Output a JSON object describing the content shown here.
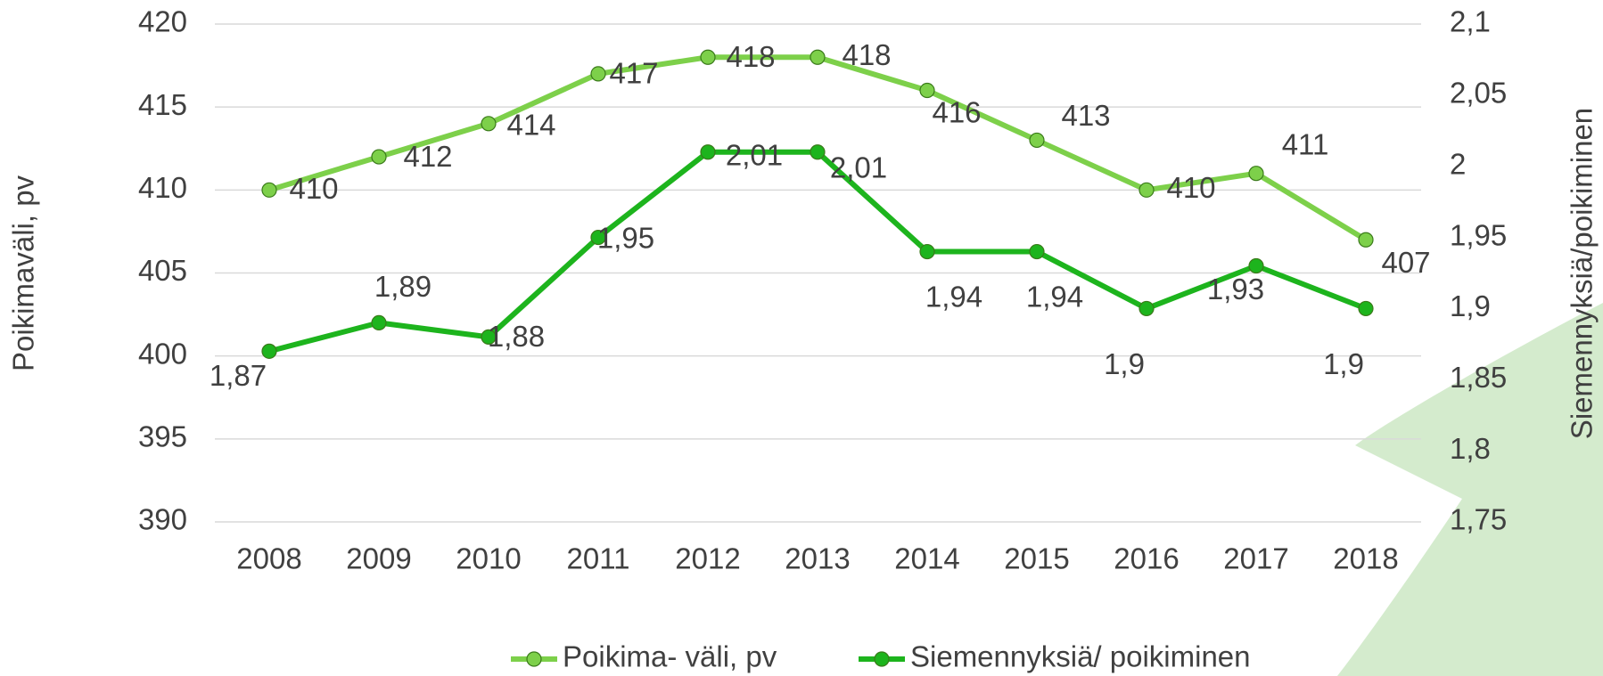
{
  "chart_data": {
    "type": "line",
    "categories": [
      "2008",
      "2009",
      "2010",
      "2011",
      "2012",
      "2013",
      "2014",
      "2015",
      "2016",
      "2017",
      "2018"
    ],
    "ylabel": "Poikimaväli, pv",
    "y2label": "Siemennyksiä/poikiminen",
    "ylim": [
      390,
      420
    ],
    "yticks": [
      390,
      395,
      400,
      405,
      410,
      415,
      420
    ],
    "y2lim": [
      1.75,
      2.1
    ],
    "y2ticks": [
      {
        "value": 1.75,
        "label": "1,75"
      },
      {
        "value": 1.8,
        "label": "1,8"
      },
      {
        "value": 1.85,
        "label": "1,85"
      },
      {
        "value": 1.9,
        "label": "1,9"
      },
      {
        "value": 1.95,
        "label": "1,95"
      },
      2,
      {
        "value": 2.05,
        "label": "2,05"
      },
      {
        "value": 2.1,
        "label": "2,1"
      }
    ],
    "grid": true,
    "legend": "bottom",
    "series": [
      {
        "name": "Poikima- väli, pv",
        "color": "#7dd04a",
        "values": [
          410,
          412,
          414,
          417,
          418,
          418,
          416,
          413,
          410,
          411,
          407
        ]
      },
      {
        "name": "Siemennyksiä/ poikiminen",
        "color": "#1db41d",
        "axis": "y2",
        "values": [
          1.87,
          1.89,
          1.88,
          1.95,
          2.01,
          2.01,
          1.94,
          1.94,
          1.9,
          1.93,
          1.9
        ],
        "value_labels": [
          "1,87",
          "1,89",
          "1,88",
          "1,95",
          "2,01",
          "2,01",
          "1,94",
          "1,94",
          "1,9",
          "1,93",
          "1,9"
        ]
      }
    ]
  }
}
